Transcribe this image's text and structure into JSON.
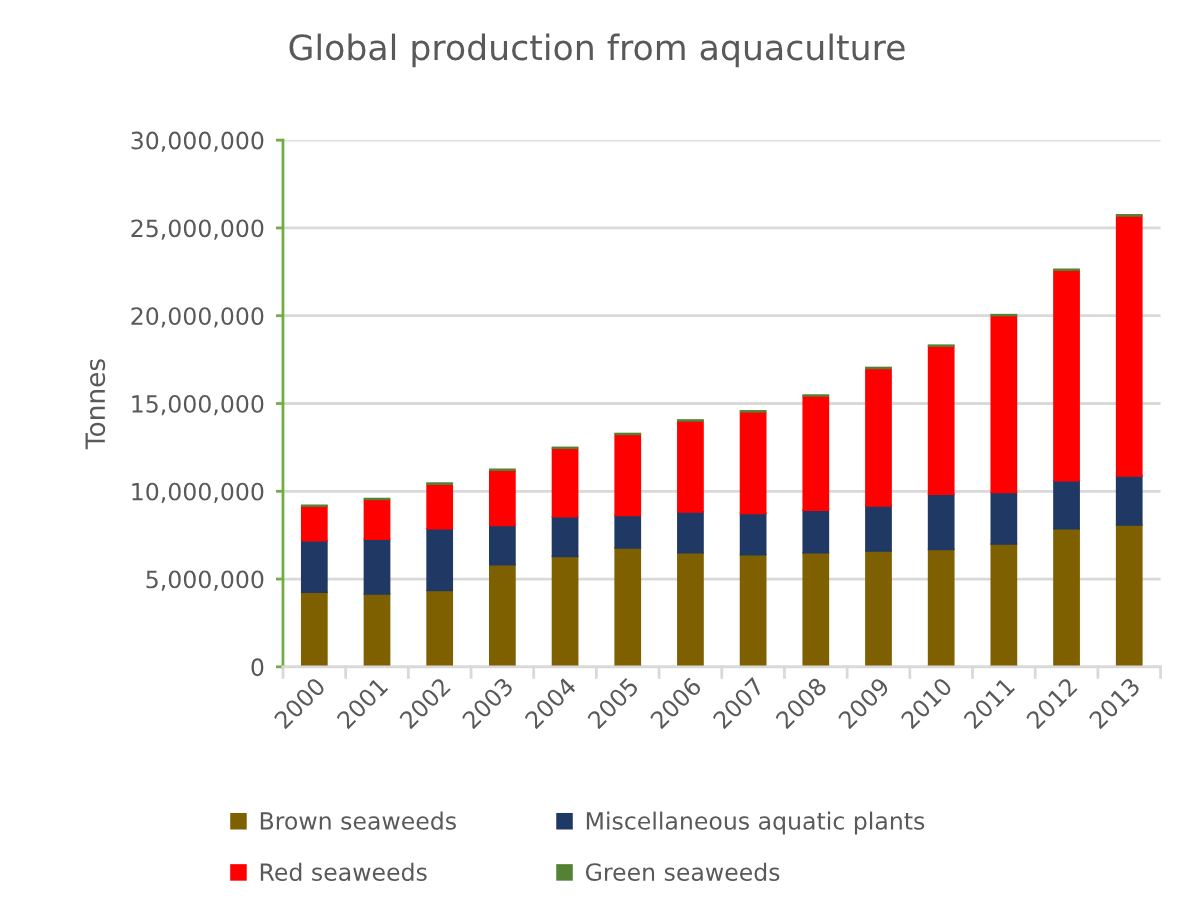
{
  "chart_data": {
    "type": "bar",
    "title": "Global production from aquaculture",
    "ylabel": "Tonnes",
    "categories": [
      "2000",
      "2001",
      "2002",
      "2003",
      "2004",
      "2005",
      "2006",
      "2007",
      "2008",
      "2009",
      "2010",
      "2011",
      "2012",
      "2013"
    ],
    "stacked": true,
    "series": [
      {
        "name": "Brown seaweeds",
        "color": "#7f6000",
        "values": [
          4250000,
          4160000,
          4350000,
          5820000,
          6290000,
          6780000,
          6500000,
          6390000,
          6500000,
          6600000,
          6690000,
          7000000,
          7870000,
          8080000
        ]
      },
      {
        "name": "Miscellaneous aquatic plants",
        "color": "#1f3864",
        "values": [
          2930000,
          3110000,
          3520000,
          2240000,
          2260000,
          1850000,
          2330000,
          2350000,
          2430000,
          2560000,
          3150000,
          2930000,
          2730000,
          2800000
        ]
      },
      {
        "name": "Red seaweeds",
        "color": "#ff0000",
        "values": [
          1970000,
          2260000,
          2540000,
          3140000,
          3900000,
          4610000,
          5180000,
          5790000,
          6500000,
          7840000,
          8430000,
          10080000,
          11990000,
          14810000
        ]
      },
      {
        "name": "Green seaweeds",
        "color": "#548235",
        "values": [
          50000,
          50000,
          50000,
          50000,
          50000,
          50000,
          50000,
          50000,
          50000,
          50000,
          50000,
          50000,
          50000,
          50000
        ]
      }
    ],
    "ylim": [
      0,
      30000000
    ],
    "yticks": [
      {
        "value": 0,
        "label": "0"
      },
      {
        "value": 5000000,
        "label": "5,000,000"
      },
      {
        "value": 10000000,
        "label": "10,000,000"
      },
      {
        "value": 15000000,
        "label": "15,000,000"
      },
      {
        "value": 20000000,
        "label": "20,000,000"
      },
      {
        "value": 25000000,
        "label": "25,000,000"
      },
      {
        "value": 30000000,
        "label": "30,000,000"
      }
    ],
    "grid": "y",
    "legend": "bottom"
  }
}
